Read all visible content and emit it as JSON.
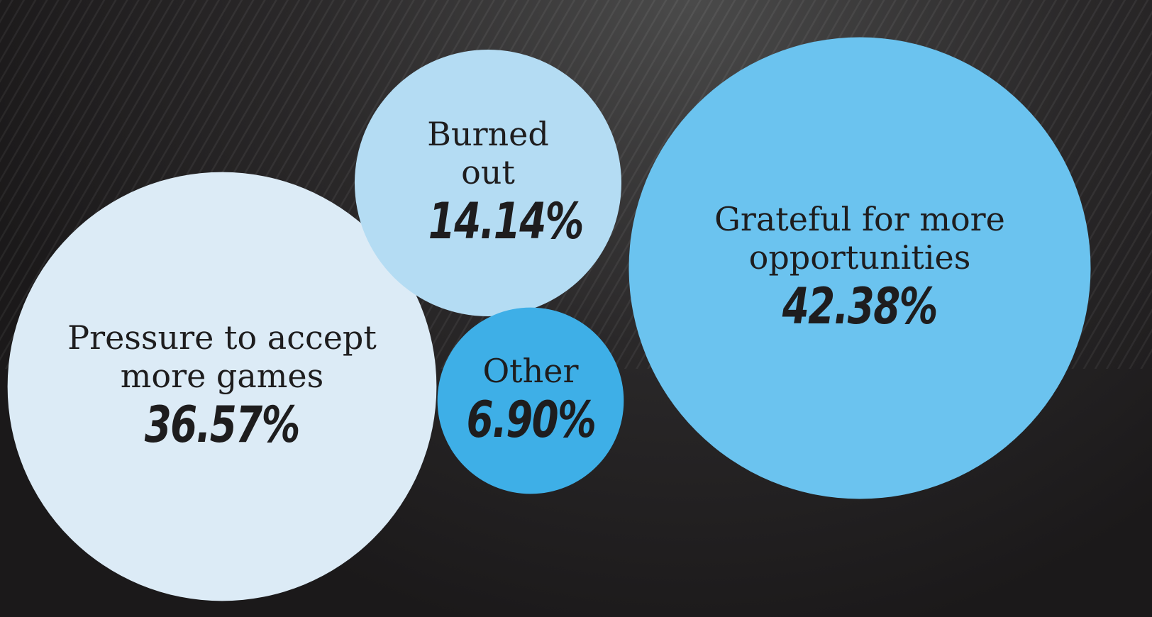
{
  "chart_data": {
    "type": "bubble",
    "categories": [
      "Pressure to accept more games",
      "Burned out",
      "Other",
      "Grateful for more opportunities"
    ],
    "values": [
      36.57,
      14.14,
      6.9,
      42.38
    ],
    "value_labels": [
      "36.57%",
      "14.14%",
      "6.90%",
      "42.38%"
    ],
    "colors": [
      "#dcebf6",
      "#b4dcf3",
      "#3eafe7",
      "#6bc3ef"
    ]
  }
}
